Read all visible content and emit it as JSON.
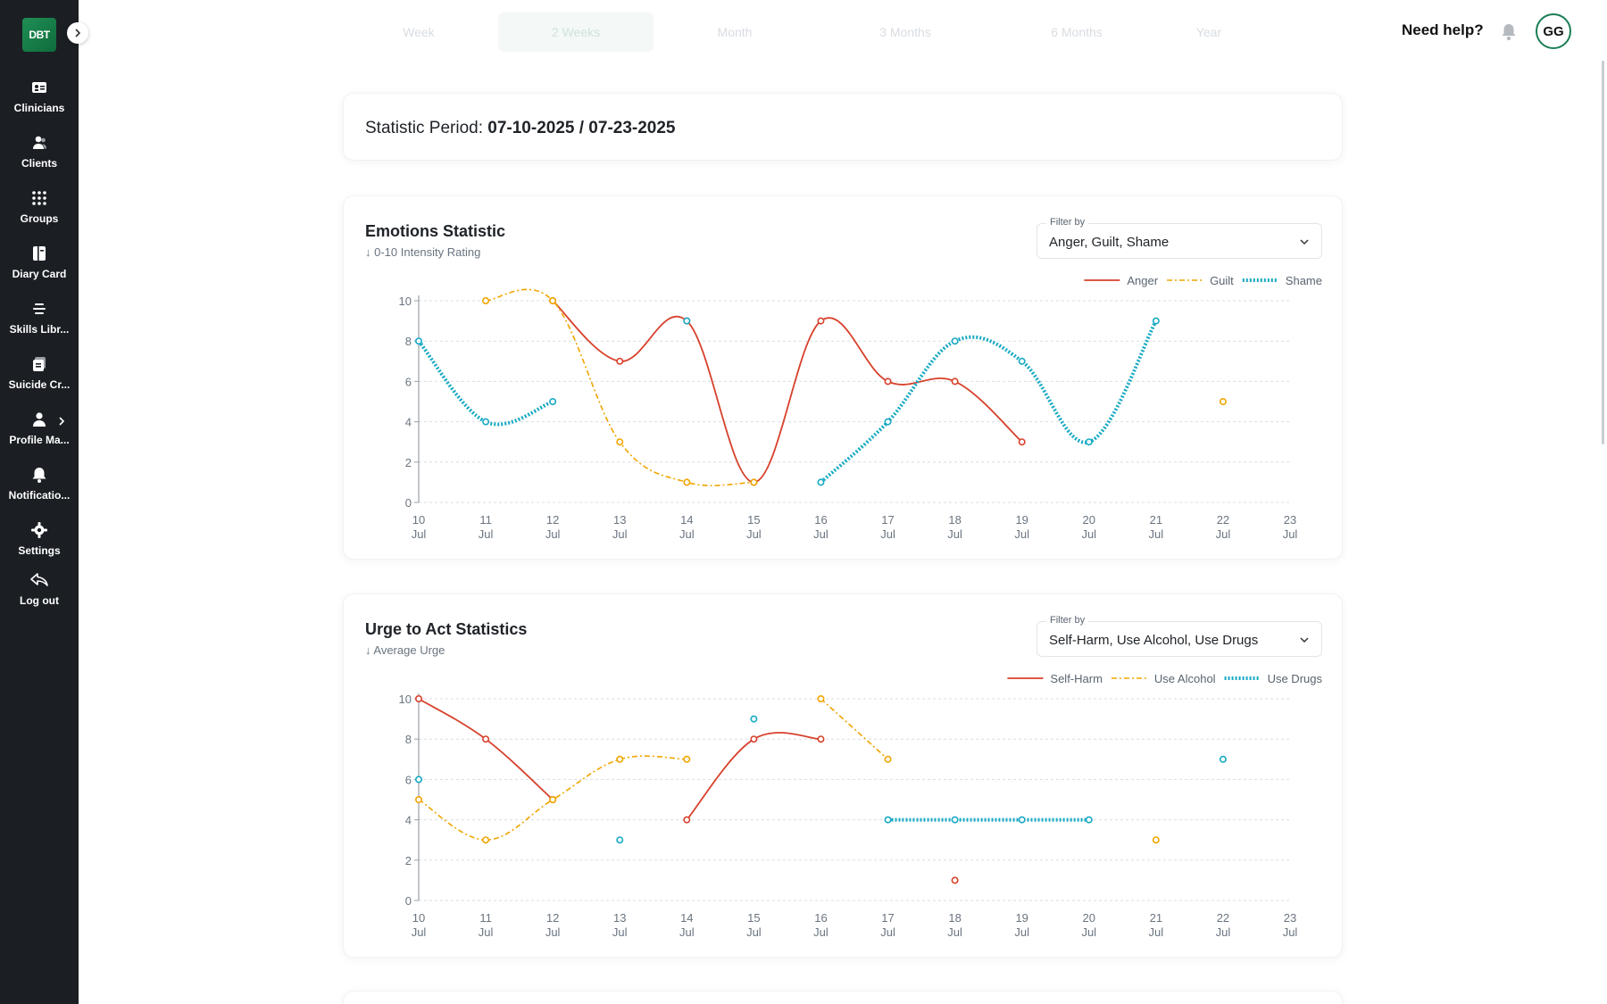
{
  "app": {
    "logo": "DBT"
  },
  "sidebar": {
    "items": [
      {
        "label": "Clinicians",
        "icon": "id-card-icon"
      },
      {
        "label": "Clients",
        "icon": "users-icon"
      },
      {
        "label": "Groups",
        "icon": "grid-dots-icon"
      },
      {
        "label": "Diary Card",
        "icon": "book-icon"
      },
      {
        "label": "Skills Libr...",
        "icon": "list-lines-icon"
      },
      {
        "label": "Suicide Cr...",
        "icon": "cards-icon"
      },
      {
        "label": "Profile Ma...",
        "icon": "person-icon"
      },
      {
        "label": "Notificatio...",
        "icon": "bell-icon"
      },
      {
        "label": "Settings",
        "icon": "gear-icon"
      },
      {
        "label": "Log out",
        "icon": "logout-icon"
      }
    ]
  },
  "header": {
    "tabs": [
      "Week",
      "2 Weeks",
      "Month",
      "3 Months",
      "6 Months",
      "Year"
    ],
    "active_tab": "2 Weeks",
    "help": "Need help?",
    "avatar": "GG"
  },
  "period": {
    "label": "Statistic Period:",
    "range": "07-10-2025 / 07-23-2025"
  },
  "colors": {
    "red": "#d7412b",
    "orange": "#f0a500",
    "cyan": "#17a9c4"
  },
  "emotions": {
    "title": "Emotions Statistic",
    "subtitle": "↓ 0-10 Intensity Rating",
    "filter_label": "Filter by",
    "filter_value": "Anger, Guilt, Shame"
  },
  "urges": {
    "title": "Urge to Act Statistics",
    "subtitle": "↓ Average Urge",
    "filter_label": "Filter by",
    "filter_value": "Self-Harm, Use Alcohol, Use Drugs"
  },
  "chart_data": [
    {
      "type": "line",
      "title": "Emotions Statistic",
      "ylabel": "0-10 Intensity Rating",
      "ylim": [
        0,
        10
      ],
      "yticks": [
        0,
        2,
        4,
        6,
        8,
        10
      ],
      "grid": true,
      "legend": "top-right",
      "categories": [
        "10 Jul",
        "11 Jul",
        "12 Jul",
        "13 Jul",
        "14 Jul",
        "15 Jul",
        "16 Jul",
        "17 Jul",
        "18 Jul",
        "19 Jul",
        "20 Jul",
        "21 Jul",
        "22 Jul",
        "23 Jul"
      ],
      "series": [
        {
          "name": "Anger",
          "style": "solid",
          "values": [
            null,
            null,
            10,
            7,
            9,
            1,
            9,
            6,
            6,
            3,
            null,
            null,
            null,
            null
          ]
        },
        {
          "name": "Guilt",
          "style": "dashdot",
          "values": [
            null,
            10,
            10,
            3,
            1,
            1,
            null,
            null,
            null,
            null,
            null,
            null,
            5,
            null
          ]
        },
        {
          "name": "Shame",
          "style": "dotted",
          "values": [
            8,
            4,
            5,
            null,
            9,
            null,
            1,
            4,
            8,
            7,
            3,
            9,
            null,
            null
          ]
        }
      ]
    },
    {
      "type": "line",
      "title": "Urge to Act Statistics",
      "ylabel": "Average Urge",
      "ylim": [
        0,
        10
      ],
      "yticks": [
        0,
        2,
        4,
        6,
        8,
        10
      ],
      "grid": true,
      "legend": "top-right",
      "categories": [
        "10 Jul",
        "11 Jul",
        "12 Jul",
        "13 Jul",
        "14 Jul",
        "15 Jul",
        "16 Jul",
        "17 Jul",
        "18 Jul",
        "19 Jul",
        "20 Jul",
        "21 Jul",
        "22 Jul",
        "23 Jul"
      ],
      "series": [
        {
          "name": "Self-Harm",
          "style": "solid",
          "values": [
            10,
            8,
            5,
            null,
            4,
            8,
            8,
            null,
            1,
            null,
            null,
            null,
            null,
            null
          ]
        },
        {
          "name": "Use Alcohol",
          "style": "dashdot",
          "values": [
            5,
            3,
            5,
            7,
            7,
            null,
            10,
            7,
            null,
            null,
            null,
            3,
            null,
            null
          ]
        },
        {
          "name": "Use Drugs",
          "style": "dotted",
          "values": [
            6,
            null,
            null,
            3,
            null,
            9,
            null,
            4,
            4,
            4,
            4,
            null,
            7,
            null
          ]
        }
      ]
    }
  ]
}
